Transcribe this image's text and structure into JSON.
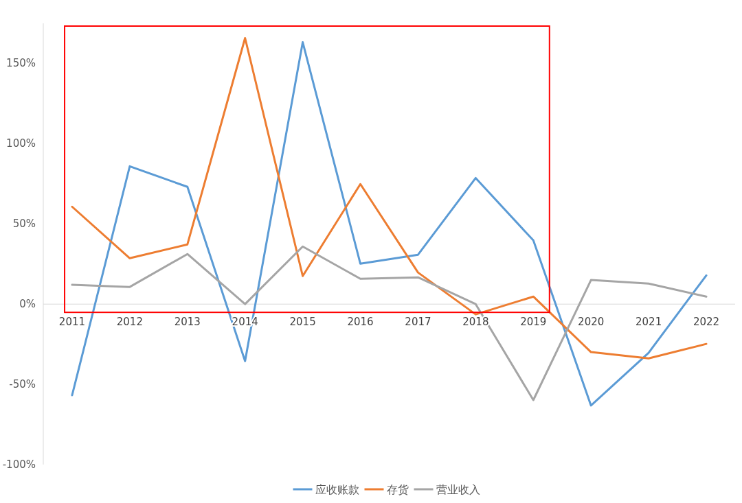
{
  "chart_data": {
    "type": "line",
    "categories": [
      "2011",
      "2012",
      "2013",
      "2014",
      "2015",
      "2016",
      "2017",
      "2018",
      "2019",
      "2020",
      "2021",
      "2022"
    ],
    "ylim": [
      -100,
      175
    ],
    "yticks": [
      {
        "value": -100,
        "label": "-100%"
      },
      {
        "value": -50,
        "label": "-50%"
      },
      {
        "value": 0,
        "label": "0%"
      },
      {
        "value": 50,
        "label": "50%"
      },
      {
        "value": 100,
        "label": "100%"
      },
      {
        "value": 150,
        "label": "150%"
      }
    ],
    "grid": false,
    "legend": "bottom",
    "marker": "none",
    "line_style": "solid",
    "series": [
      {
        "name": "应收账款",
        "color": "#5b9bd5",
        "values": [
          -56.8,
          85.9,
          73.1,
          -35.5,
          163.2,
          25.2,
          30.8,
          78.6,
          39.7,
          -63.2,
          -30.3,
          17.9
        ]
      },
      {
        "name": "存货",
        "color": "#ed7d31",
        "values": [
          60.7,
          28.6,
          37.2,
          165.8,
          17.5,
          74.8,
          19.7,
          -6.4,
          4.7,
          -29.9,
          -33.8,
          -24.8
        ]
      },
      {
        "name": "营业收入",
        "color": "#a5a5a5",
        "values": [
          12.0,
          10.7,
          31.2,
          0,
          35.9,
          15.8,
          16.7,
          0,
          -59.8,
          15.0,
          12.8,
          4.7
        ]
      }
    ]
  }
}
